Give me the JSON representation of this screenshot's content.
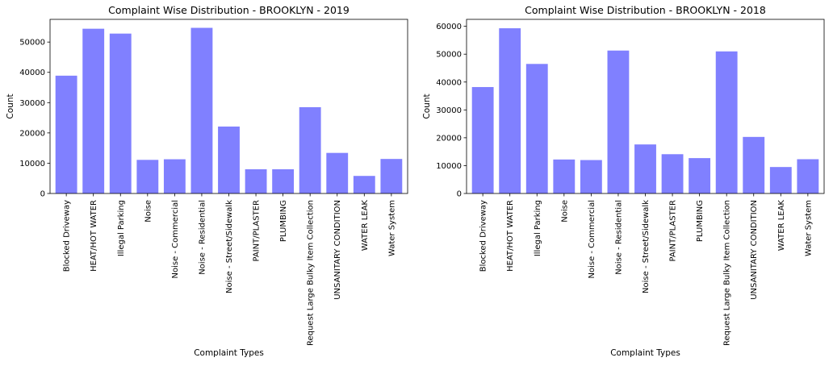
{
  "chart_data": [
    {
      "type": "bar",
      "title": "Complaint Wise Distribution - BROOKLYN - 2019",
      "xlabel": "Complaint Types",
      "ylabel": "Count",
      "ylim": [
        0,
        57500
      ],
      "yticks": [
        0,
        10000,
        20000,
        30000,
        40000,
        50000
      ],
      "categories": [
        "Blocked Driveway",
        "HEAT/HOT WATER",
        "Illegal Parking",
        "Noise",
        "Noise - Commercial",
        "Noise - Residential",
        "Noise - Street/Sidewalk",
        "PAINT/PLASTER",
        "PLUMBING",
        "Request Large Bulky Item Collection",
        "UNSANITARY CONDITION",
        "WATER LEAK",
        "Water System"
      ],
      "values": [
        38900,
        54400,
        52800,
        11100,
        11300,
        54700,
        22100,
        8000,
        8000,
        28500,
        13400,
        5800,
        11400
      ],
      "bar_color": "#8080ff",
      "grid": false
    },
    {
      "type": "bar",
      "title": "Complaint Wise Distribution - BROOKLYN - 2018",
      "xlabel": "Complaint Types",
      "ylabel": "Count",
      "ylim": [
        0,
        62500
      ],
      "yticks": [
        0,
        10000,
        20000,
        30000,
        40000,
        50000,
        60000
      ],
      "categories": [
        "Blocked Driveway",
        "HEAT/HOT WATER",
        "Illegal Parking",
        "Noise",
        "Noise - Commercial",
        "Noise - Residential",
        "Noise - Street/Sidewalk",
        "PAINT/PLASTER",
        "PLUMBING",
        "Request Large Bulky Item Collection",
        "UNSANITARY CONDITION",
        "WATER LEAK",
        "Water System"
      ],
      "values": [
        38200,
        59300,
        46500,
        12200,
        12000,
        51300,
        17600,
        14100,
        12700,
        51000,
        20300,
        9500,
        12300
      ],
      "bar_color": "#8080ff",
      "grid": false
    }
  ]
}
